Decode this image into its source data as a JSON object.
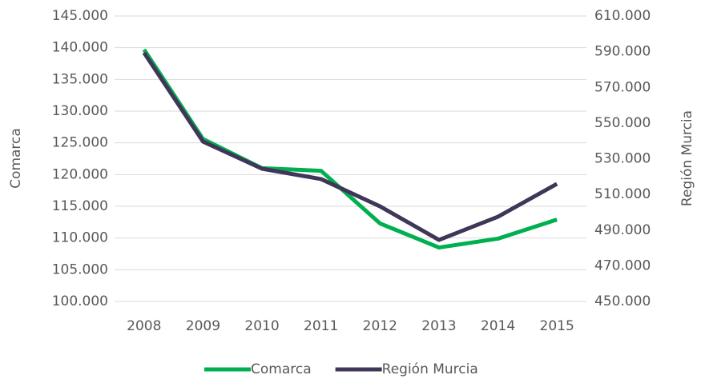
{
  "chart_data": {
    "type": "line",
    "categories": [
      "2008",
      "2009",
      "2010",
      "2011",
      "2012",
      "2013",
      "2014",
      "2015"
    ],
    "ylabel": "Comarca",
    "y2label": "Región Murcia",
    "series": [
      {
        "name": "Comarca",
        "color": "#00b050",
        "values": [
          139700,
          125600,
          121000,
          120600,
          112300,
          108500,
          109900,
          112900
        ]
      },
      {
        "name": "Región Murcia",
        "color": "#3f3658",
        "axis": "y2",
        "values": [
          589400,
          539600,
          524400,
          518600,
          503300,
          484500,
          497500,
          515900
        ]
      }
    ],
    "ylim": [
      100000,
      145000
    ],
    "yticks": [
      {
        "value": 100000,
        "label": "100.000"
      },
      {
        "value": 105000,
        "label": "105.000"
      },
      {
        "value": 110000,
        "label": "110.000"
      },
      {
        "value": 115000,
        "label": "115.000"
      },
      {
        "value": 120000,
        "label": "120.000"
      },
      {
        "value": 125000,
        "label": "125.000"
      },
      {
        "value": 130000,
        "label": "130.000"
      },
      {
        "value": 135000,
        "label": "135.000"
      },
      {
        "value": 140000,
        "label": "140.000"
      },
      {
        "value": 145000,
        "label": "145.000"
      }
    ],
    "y2lim": [
      450000,
      610000
    ],
    "y2ticks": [
      {
        "value": 450000,
        "label": "450.000"
      },
      {
        "value": 470000,
        "label": "470.000"
      },
      {
        "value": 490000,
        "label": "490.000"
      },
      {
        "value": 510000,
        "label": "510.000"
      },
      {
        "value": 530000,
        "label": "530.000"
      },
      {
        "value": 550000,
        "label": "550.000"
      },
      {
        "value": 570000,
        "label": "570.000"
      },
      {
        "value": 590000,
        "label": "590.000"
      },
      {
        "value": 610000,
        "label": "610.000"
      }
    ],
    "grid": true,
    "legend": "bottom"
  }
}
